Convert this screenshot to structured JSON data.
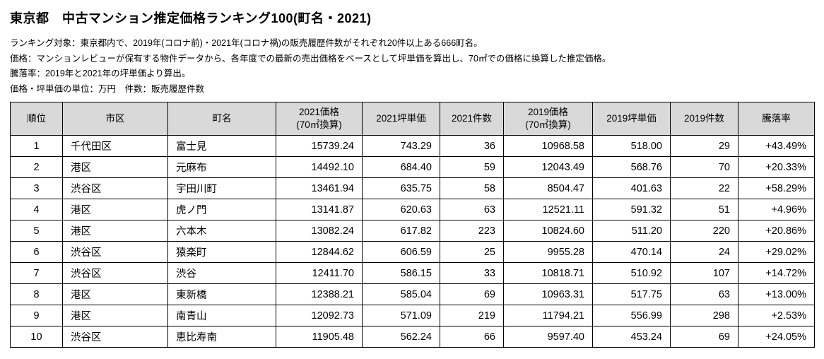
{
  "title": "東京都　中古マンション推定価格ランキング100(町名・2021)",
  "notes": [
    "ランキング対象：東京都内で、2019年(コロナ前)・2021年(コロナ禍)の販売履歴件数がそれぞれ20件以上ある666町名。",
    "価格：マンションレビューが保有する物件データから、各年度での最新の売出価格をベースとして坪単価を算出し、70㎡での価格に換算した推定価格。",
    "騰落率：2019年と2021年の坪単価より算出。",
    "価格・坪単価の単位：万円　件数：販売履歴件数"
  ],
  "colors": {
    "header_bg": "#d9d9d9",
    "border": "#000000"
  },
  "table": {
    "headers": [
      {
        "label": "順位",
        "sub": ""
      },
      {
        "label": "市区",
        "sub": ""
      },
      {
        "label": "町名",
        "sub": ""
      },
      {
        "label": "2021価格",
        "sub": "(70㎡換算)"
      },
      {
        "label": "2021坪単価",
        "sub": ""
      },
      {
        "label": "2021件数",
        "sub": ""
      },
      {
        "label": "2019価格",
        "sub": "(70㎡換算)"
      },
      {
        "label": "2019坪単価",
        "sub": ""
      },
      {
        "label": "2019件数",
        "sub": ""
      },
      {
        "label": "騰落率",
        "sub": ""
      }
    ],
    "rows": [
      [
        "1",
        "千代田区",
        "富士見",
        "15739.24",
        "743.29",
        "36",
        "10968.58",
        "518.00",
        "29",
        "+43.49%"
      ],
      [
        "2",
        "港区",
        "元麻布",
        "14492.10",
        "684.40",
        "59",
        "12043.49",
        "568.76",
        "70",
        "+20.33%"
      ],
      [
        "3",
        "渋谷区",
        "宇田川町",
        "13461.94",
        "635.75",
        "58",
        "8504.47",
        "401.63",
        "22",
        "+58.29%"
      ],
      [
        "4",
        "港区",
        "虎ノ門",
        "13141.87",
        "620.63",
        "63",
        "12521.11",
        "591.32",
        "51",
        "+4.96%"
      ],
      [
        "5",
        "港区",
        "六本木",
        "13082.24",
        "617.82",
        "223",
        "10824.60",
        "511.20",
        "220",
        "+20.86%"
      ],
      [
        "6",
        "渋谷区",
        "猿楽町",
        "12844.62",
        "606.59",
        "25",
        "9955.28",
        "470.14",
        "24",
        "+29.02%"
      ],
      [
        "7",
        "渋谷区",
        "渋谷",
        "12411.70",
        "586.15",
        "33",
        "10818.71",
        "510.92",
        "107",
        "+14.72%"
      ],
      [
        "8",
        "港区",
        "東新橋",
        "12388.21",
        "585.04",
        "69",
        "10963.31",
        "517.75",
        "63",
        "+13.00%"
      ],
      [
        "9",
        "港区",
        "南青山",
        "12092.73",
        "571.09",
        "219",
        "11794.21",
        "556.99",
        "298",
        "+2.53%"
      ],
      [
        "10",
        "渋谷区",
        "恵比寿南",
        "11905.48",
        "562.24",
        "66",
        "9597.40",
        "453.24",
        "69",
        "+24.05%"
      ]
    ]
  }
}
